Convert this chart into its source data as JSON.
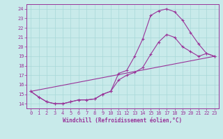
{
  "xlabel": "Windchill (Refroidissement éolien,°C)",
  "bg_color": "#c8eaea",
  "grid_color": "#a8d8d8",
  "line_color": "#993399",
  "spine_color": "#993399",
  "xlim": [
    -0.5,
    23.5
  ],
  "ylim": [
    13.5,
    24.5
  ],
  "yticks": [
    14,
    15,
    16,
    17,
    18,
    19,
    20,
    21,
    22,
    23,
    24
  ],
  "xticks": [
    0,
    1,
    2,
    3,
    4,
    5,
    6,
    7,
    8,
    9,
    10,
    11,
    12,
    13,
    14,
    15,
    16,
    17,
    18,
    19,
    20,
    21,
    22,
    23
  ],
  "curve1_x": [
    0,
    1,
    2,
    3,
    4,
    5,
    6,
    7,
    8,
    9,
    10,
    11,
    12,
    13,
    14,
    15,
    16,
    17,
    18,
    19,
    20,
    21,
    22,
    23
  ],
  "curve1_y": [
    15.3,
    14.7,
    14.2,
    14.0,
    14.0,
    14.2,
    14.4,
    14.4,
    14.5,
    15.0,
    15.3,
    17.2,
    17.5,
    19.0,
    20.8,
    23.3,
    23.8,
    24.0,
    23.7,
    22.8,
    21.5,
    20.3,
    19.3,
    19.0
  ],
  "curve2_x": [
    0,
    1,
    2,
    3,
    4,
    5,
    6,
    7,
    8,
    9,
    10,
    11,
    12,
    13,
    14,
    15,
    16,
    17,
    18,
    19,
    20,
    21,
    22,
    23
  ],
  "curve2_y": [
    15.3,
    14.7,
    14.2,
    14.0,
    14.0,
    14.2,
    14.4,
    14.4,
    14.5,
    15.0,
    15.3,
    16.5,
    17.0,
    17.3,
    17.8,
    19.2,
    20.5,
    21.3,
    21.0,
    20.0,
    19.5,
    19.0,
    19.3,
    19.0
  ],
  "curve3_x": [
    0,
    23
  ],
  "curve3_y": [
    15.3,
    19.0
  ],
  "xlabel_fontsize": 5.5,
  "tick_fontsize": 5.0
}
